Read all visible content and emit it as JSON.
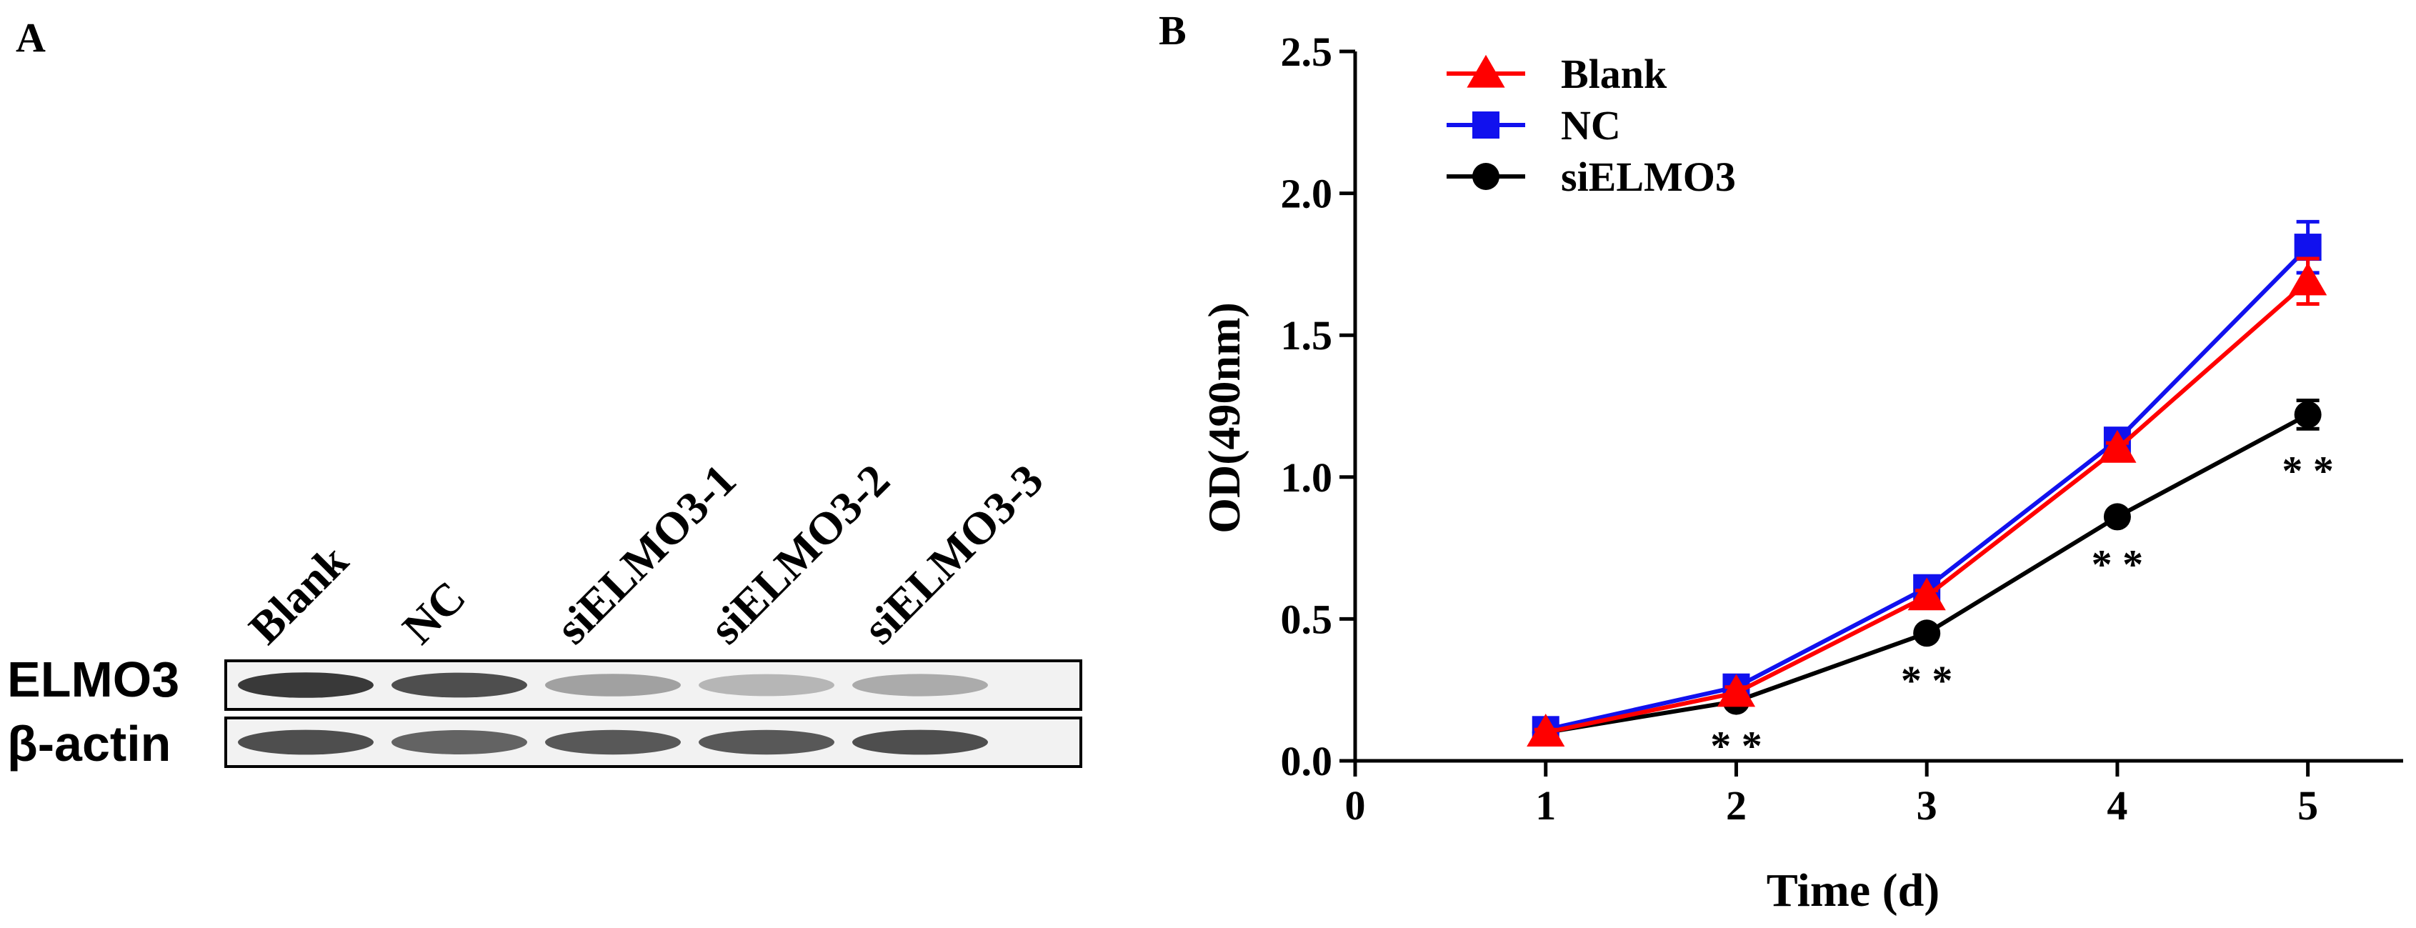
{
  "panel_a": {
    "label": "A",
    "lane_labels": [
      "Blank",
      "NC",
      "siELMO3-1",
      "siELMO3-2",
      "siELMO3-3"
    ],
    "row_labels": [
      "ELMO3",
      "β-actin"
    ],
    "band_intensity": {
      "ELMO3": [
        0.95,
        0.85,
        0.45,
        0.35,
        0.4
      ],
      "beta_actin": [
        0.85,
        0.75,
        0.8,
        0.8,
        0.85
      ]
    }
  },
  "chart_data": {
    "panel_label": "B",
    "type": "line",
    "xlabel": "Time (d)",
    "ylabel": "OD(490nm)",
    "xlim": [
      0,
      5.5
    ],
    "ylim": [
      0,
      2.5
    ],
    "xticks": [
      0,
      1,
      2,
      3,
      4,
      5
    ],
    "yticks": [
      "0.0",
      "0.5",
      "1.0",
      "1.5",
      "2.0",
      "2.5"
    ],
    "grid": false,
    "legend_position": "top-left",
    "x": [
      1,
      2,
      3,
      4,
      5
    ],
    "series": [
      {
        "name": "Blank",
        "color": "#ff0000",
        "marker": "triangle",
        "values": [
          0.1,
          0.24,
          0.58,
          1.1,
          1.69
        ],
        "errors": [
          0.01,
          0.02,
          0.02,
          0.02,
          0.08
        ]
      },
      {
        "name": "NC",
        "color": "#1111ee",
        "marker": "square",
        "values": [
          0.11,
          0.26,
          0.61,
          1.13,
          1.81
        ],
        "errors": [
          0.01,
          0.02,
          0.02,
          0.02,
          0.09
        ]
      },
      {
        "name": "siELMO3",
        "color": "#000000",
        "marker": "circle",
        "values": [
          0.1,
          0.21,
          0.45,
          0.86,
          1.22
        ],
        "errors": [
          0.01,
          0.01,
          0.02,
          0.02,
          0.05
        ]
      }
    ],
    "annotations": [
      {
        "x": 2,
        "text": "* *"
      },
      {
        "x": 3,
        "text": "* *"
      },
      {
        "x": 4,
        "text": "* *"
      },
      {
        "x": 5,
        "text": "* *"
      }
    ]
  }
}
